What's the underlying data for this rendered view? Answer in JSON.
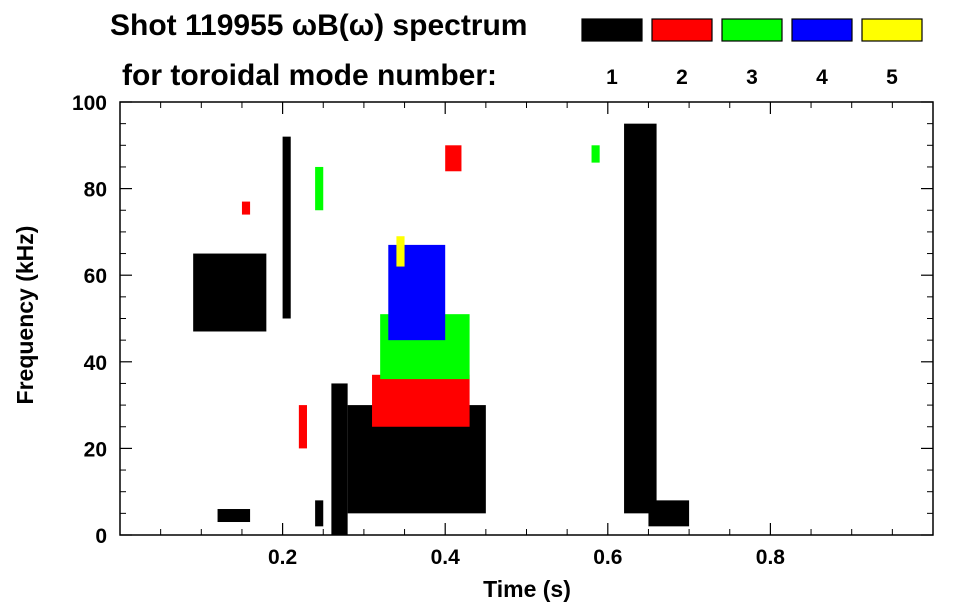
{
  "chart_data": {
    "type": "heatmap",
    "title_line1": "Shot 119955 ωB(ω) spectrum",
    "title_line2": "for toroidal mode number:",
    "xlabel": "Time (s)",
    "ylabel": "Frequency (kHz)",
    "xlim": [
      0.0,
      1.0
    ],
    "ylim": [
      0,
      100
    ],
    "xticks": [
      0.2,
      0.4,
      0.6,
      0.8
    ],
    "xtick_labels": [
      "0.2",
      "0.4",
      "0.6",
      "0.8"
    ],
    "yticks": [
      0,
      20,
      40,
      60,
      80,
      100
    ],
    "ytick_labels": [
      "0",
      "20",
      "40",
      "60",
      "80",
      "100"
    ],
    "legend": [
      {
        "label": "1",
        "color": "#000000"
      },
      {
        "label": "2",
        "color": "#ff0000"
      },
      {
        "label": "3",
        "color": "#00ff00"
      },
      {
        "label": "4",
        "color": "#0000ff"
      },
      {
        "label": "5",
        "color": "#ffff00"
      }
    ],
    "series": [
      {
        "mode": "1",
        "color": "#000000",
        "regions": [
          {
            "t": [
              0.09,
              0.18
            ],
            "f": [
              47,
              65
            ]
          },
          {
            "t": [
              0.2,
              0.21
            ],
            "f": [
              50,
              92
            ]
          },
          {
            "t": [
              0.24,
              0.25
            ],
            "f": [
              2,
              8
            ]
          },
          {
            "t": [
              0.28,
              0.45
            ],
            "f": [
              5,
              30
            ]
          },
          {
            "t": [
              0.26,
              0.28
            ],
            "f": [
              0,
              35
            ]
          },
          {
            "t": [
              0.62,
              0.66
            ],
            "f": [
              5,
              95
            ]
          },
          {
            "t": [
              0.65,
              0.7
            ],
            "f": [
              2,
              8
            ]
          },
          {
            "t": [
              0.12,
              0.16
            ],
            "f": [
              3,
              6
            ]
          }
        ]
      },
      {
        "mode": "2",
        "color": "#ff0000",
        "regions": [
          {
            "t": [
              0.31,
              0.43
            ],
            "f": [
              25,
              37
            ]
          },
          {
            "t": [
              0.22,
              0.23
            ],
            "f": [
              20,
              30
            ]
          },
          {
            "t": [
              0.4,
              0.42
            ],
            "f": [
              84,
              90
            ]
          },
          {
            "t": [
              0.15,
              0.16
            ],
            "f": [
              74,
              77
            ]
          }
        ]
      },
      {
        "mode": "3",
        "color": "#00ff00",
        "regions": [
          {
            "t": [
              0.32,
              0.43
            ],
            "f": [
              36,
              51
            ]
          },
          {
            "t": [
              0.24,
              0.25
            ],
            "f": [
              75,
              85
            ]
          },
          {
            "t": [
              0.58,
              0.59
            ],
            "f": [
              86,
              90
            ]
          }
        ]
      },
      {
        "mode": "4",
        "color": "#0000ff",
        "regions": [
          {
            "t": [
              0.33,
              0.4
            ],
            "f": [
              45,
              67
            ]
          }
        ]
      },
      {
        "mode": "5",
        "color": "#ffff00",
        "regions": [
          {
            "t": [
              0.34,
              0.35
            ],
            "f": [
              62,
              69
            ]
          }
        ]
      }
    ]
  }
}
